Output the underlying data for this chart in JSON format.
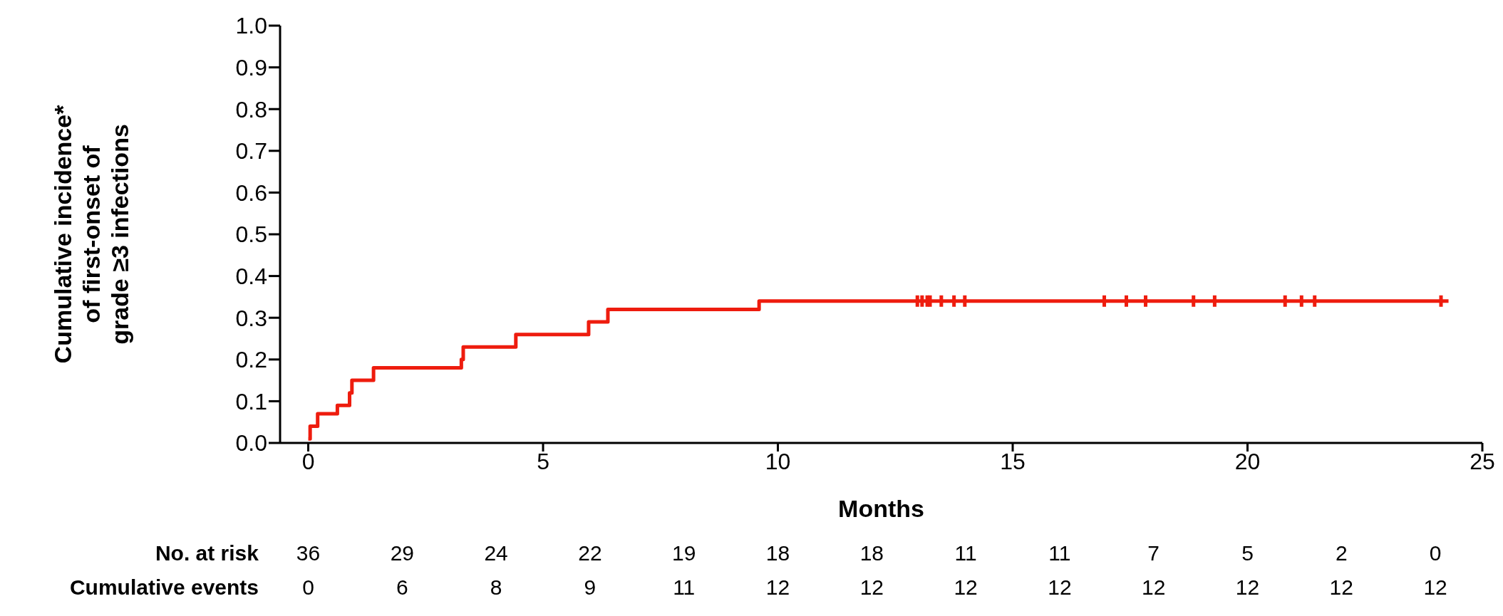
{
  "chart_data": {
    "type": "step",
    "xlabel": "Months",
    "ylabel": "Cumulative incidence* of first-onset of grade ≥3 infections",
    "xlim": [
      -0.6,
      25
    ],
    "xticks": [
      0,
      5,
      10,
      15,
      20,
      25
    ],
    "ylim": [
      0,
      1
    ],
    "yticks": [
      {
        "value": 0,
        "label": "0.0"
      },
      {
        "value": 0.1,
        "label": "0.1"
      },
      {
        "value": 0.2,
        "label": "0.2"
      },
      {
        "value": 0.3,
        "label": "0.3"
      },
      {
        "value": 0.4,
        "label": "0.4"
      },
      {
        "value": 0.5,
        "label": "0.5"
      },
      {
        "value": 0.6,
        "label": "0.6"
      },
      {
        "value": 0.7,
        "label": "0.7"
      },
      {
        "value": 0.8,
        "label": "0.8"
      },
      {
        "value": 0.9,
        "label": "0.9"
      },
      {
        "value": 1,
        "label": "1.0"
      }
    ],
    "grid": false,
    "series": [
      {
        "color": "#ee1c0e",
        "x": [
          0,
          0.04,
          0.2,
          0.62,
          0.88,
          0.93,
          1.39,
          3.26,
          3.3,
          4.42,
          5.97,
          6.38,
          9.6,
          24.28
        ],
        "values": [
          0.01,
          0.04,
          0.07,
          0.09,
          0.12,
          0.15,
          0.18,
          0.2,
          0.23,
          0.26,
          0.29,
          0.32,
          0.34,
          0.34
        ]
      },
      {
        "type": "scatter",
        "color": "#ee1c0e",
        "x": [
          12.97,
          13.07,
          13.18,
          13.24,
          13.48,
          13.75,
          13.98,
          16.95,
          17.42,
          17.83,
          18.85,
          19.3,
          20.8,
          21.15,
          21.43,
          24.12
        ],
        "values": [
          0.34,
          0.34,
          0.34,
          0.34,
          0.34,
          0.34,
          0.34,
          0.34,
          0.34,
          0.34,
          0.34,
          0.34,
          0.34,
          0.34,
          0.34,
          0.34
        ]
      }
    ],
    "annotations": [
      "No. at risk",
      "36",
      "29",
      "24",
      "22",
      "19",
      "18",
      "18",
      "11",
      "11",
      "7",
      "5",
      "2",
      "0",
      "Cumulative events",
      "0",
      "6",
      "8",
      "9",
      "11",
      "12",
      "12",
      "12",
      "12",
      "12",
      "12",
      "12",
      "12"
    ]
  }
}
